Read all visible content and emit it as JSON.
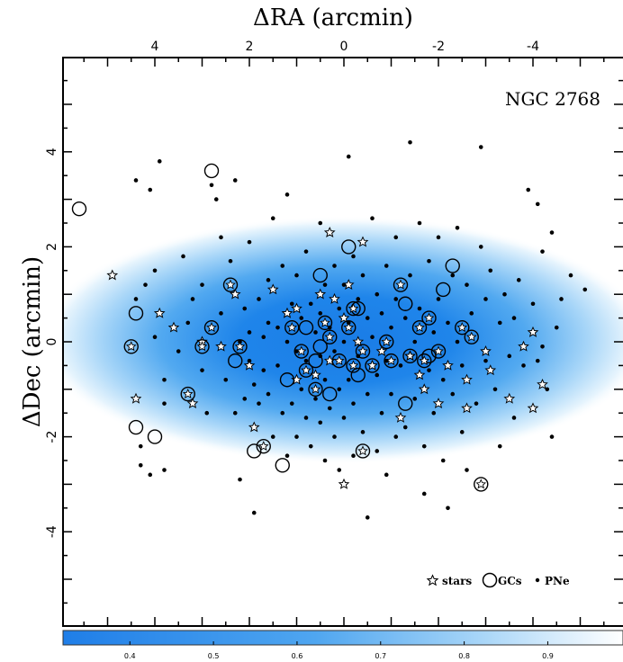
{
  "chart_data": {
    "type": "scatter",
    "xlabel": "ΔRA (arcmin)",
    "ylabel": "ΔDec (arcmin)",
    "xlim": [
      5.8,
      -5.8
    ],
    "ylim": [
      -6,
      6
    ],
    "x_ticks": [
      "4",
      "2",
      "0",
      "-2",
      "-4"
    ],
    "y_ticks": [
      "-4",
      "-2",
      "0",
      "2",
      "4"
    ],
    "annotation": "NGC 2768",
    "legend": {
      "stars_label": "stars",
      "gcs_label": "GCs",
      "pne_label": "PNe",
      "placement": "bottom-right"
    },
    "colorbar": {
      "ticks": [
        "0.4",
        "0.5",
        "0.6",
        "0.7",
        "0.8",
        "0.9"
      ],
      "range": [
        0.32,
        0.99
      ],
      "color_low": "#1f7ee8",
      "color_high": "#ffffff"
    },
    "series": [
      {
        "name": "stars",
        "marker": "star",
        "points": [
          [
            4.9,
            1.4
          ],
          [
            3.9,
            0.6
          ],
          [
            3.6,
            0.3
          ],
          [
            3.2,
            -1.3
          ],
          [
            3.0,
            0.0
          ],
          [
            2.3,
            1.0
          ],
          [
            2.6,
            -0.1
          ],
          [
            2.0,
            -0.5
          ],
          [
            1.9,
            -1.8
          ],
          [
            1.5,
            1.1
          ],
          [
            1.2,
            0.6
          ],
          [
            1.0,
            0.7
          ],
          [
            1.0,
            -0.8
          ],
          [
            0.6,
            -0.7
          ],
          [
            0.5,
            1.0
          ],
          [
            0.3,
            -0.4
          ],
          [
            0.3,
            2.3
          ],
          [
            0.2,
            0.9
          ],
          [
            0.0,
            -3.0
          ],
          [
            0.0,
            0.5
          ],
          [
            -0.1,
            1.2
          ],
          [
            -0.3,
            0.0
          ],
          [
            -0.4,
            2.1
          ],
          [
            -0.6,
            -0.5
          ],
          [
            -0.8,
            -0.2
          ],
          [
            -1.2,
            -1.6
          ],
          [
            -1.4,
            -0.3
          ],
          [
            -1.6,
            -0.7
          ],
          [
            -1.7,
            -1.0
          ],
          [
            -2.0,
            -1.3
          ],
          [
            -2.2,
            -0.5
          ],
          [
            -2.6,
            -0.8
          ],
          [
            -2.6,
            -1.4
          ],
          [
            -3.0,
            -0.2
          ],
          [
            -3.1,
            -0.6
          ],
          [
            -3.5,
            -1.2
          ],
          [
            -3.8,
            -0.1
          ],
          [
            -4.0,
            0.2
          ],
          [
            -4.0,
            -1.4
          ],
          [
            -4.2,
            -0.9
          ],
          [
            4.4,
            -1.2
          ]
        ]
      },
      {
        "name": "GCs",
        "marker": "circle",
        "points": [
          [
            5.6,
            2.8
          ],
          [
            4.4,
            0.6
          ],
          [
            4.4,
            -1.8
          ],
          [
            4.0,
            -2.0
          ],
          [
            2.8,
            3.6
          ],
          [
            1.9,
            -2.3
          ],
          [
            1.3,
            -2.6
          ],
          [
            0.5,
            1.4
          ],
          [
            -0.1,
            2.0
          ],
          [
            -1.3,
            -1.3
          ],
          [
            -2.3,
            1.6
          ],
          [
            -2.1,
            1.1
          ],
          [
            1.2,
            -0.8
          ],
          [
            0.3,
            -1.1
          ],
          [
            -0.3,
            0.7
          ],
          [
            0.8,
            0.3
          ],
          [
            -0.6,
            -0.5
          ],
          [
            -1.3,
            0.8
          ],
          [
            0.6,
            -0.4
          ],
          [
            -1.8,
            -0.3
          ],
          [
            -0.3,
            -0.7
          ],
          [
            2.3,
            -0.4
          ],
          [
            0.5,
            -0.1
          ]
        ]
      },
      {
        "name": "GCs with star",
        "marker": "circle-star",
        "points": [
          [
            4.5,
            -0.1
          ],
          [
            3.3,
            -1.1
          ],
          [
            3.0,
            -0.1
          ],
          [
            2.8,
            0.3
          ],
          [
            2.4,
            1.2
          ],
          [
            2.2,
            -0.1
          ],
          [
            1.7,
            -2.2
          ],
          [
            1.1,
            0.3
          ],
          [
            0.9,
            -0.2
          ],
          [
            0.6,
            -1.0
          ],
          [
            0.3,
            0.1
          ],
          [
            0.1,
            -0.4
          ],
          [
            -0.1,
            0.3
          ],
          [
            -0.2,
            -0.5
          ],
          [
            -0.4,
            -0.2
          ],
          [
            -0.4,
            -2.3
          ],
          [
            -0.9,
            0.0
          ],
          [
            -1.2,
            1.2
          ],
          [
            -1.4,
            -0.3
          ],
          [
            -1.6,
            0.3
          ],
          [
            -1.7,
            -0.4
          ],
          [
            -1.8,
            0.5
          ],
          [
            -2.0,
            -0.2
          ],
          [
            -2.5,
            0.3
          ],
          [
            -2.7,
            0.1
          ],
          [
            -2.9,
            -3.0
          ],
          [
            -0.2,
            0.7
          ],
          [
            0.8,
            -0.6
          ],
          [
            -1.0,
            -0.4
          ],
          [
            0.4,
            0.4
          ]
        ]
      },
      {
        "name": "PNe",
        "marker": "dot",
        "points": [
          [
            4.4,
            3.4
          ],
          [
            4.1,
            3.2
          ],
          [
            3.9,
            3.8
          ],
          [
            4.2,
            1.2
          ],
          [
            4.0,
            1.5
          ],
          [
            4.3,
            -2.6
          ],
          [
            4.1,
            -2.8
          ],
          [
            3.8,
            -2.7
          ],
          [
            4.3,
            -2.2
          ],
          [
            4.4,
            0.9
          ],
          [
            4.0,
            0.1
          ],
          [
            3.8,
            -0.8
          ],
          [
            3.8,
            -1.3
          ],
          [
            3.5,
            -0.2
          ],
          [
            3.4,
            1.8
          ],
          [
            3.3,
            0.4
          ],
          [
            3.2,
            0.9
          ],
          [
            3.0,
            1.2
          ],
          [
            3.0,
            -0.6
          ],
          [
            2.9,
            -1.5
          ],
          [
            2.8,
            3.3
          ],
          [
            2.7,
            3.0
          ],
          [
            2.6,
            2.2
          ],
          [
            2.6,
            0.6
          ],
          [
            2.5,
            -0.8
          ],
          [
            2.4,
            1.7
          ],
          [
            2.3,
            3.4
          ],
          [
            2.3,
            -1.5
          ],
          [
            2.2,
            0.0
          ],
          [
            2.2,
            -2.9
          ],
          [
            2.1,
            0.7
          ],
          [
            2.1,
            -1.2
          ],
          [
            2.0,
            2.1
          ],
          [
            2.0,
            0.2
          ],
          [
            2.0,
            -0.4
          ],
          [
            1.9,
            -3.6
          ],
          [
            1.9,
            -0.9
          ],
          [
            1.8,
            0.9
          ],
          [
            1.8,
            -1.3
          ],
          [
            1.7,
            0.1
          ],
          [
            1.7,
            -0.6
          ],
          [
            1.6,
            1.3
          ],
          [
            1.6,
            0.4
          ],
          [
            1.6,
            -1.1
          ],
          [
            1.5,
            -2.0
          ],
          [
            1.5,
            2.6
          ],
          [
            1.4,
            0.3
          ],
          [
            1.4,
            -0.5
          ],
          [
            1.3,
            1.6
          ],
          [
            1.3,
            -1.5
          ],
          [
            1.2,
            3.1
          ],
          [
            1.2,
            0.0
          ],
          [
            1.2,
            -2.4
          ],
          [
            1.1,
            0.8
          ],
          [
            1.1,
            -1.3
          ],
          [
            1.0,
            1.4
          ],
          [
            1.0,
            -0.2
          ],
          [
            1.0,
            -2.0
          ],
          [
            0.9,
            0.5
          ],
          [
            0.9,
            -1.0
          ],
          [
            0.8,
            1.9
          ],
          [
            0.8,
            -0.4
          ],
          [
            0.8,
            -1.6
          ],
          [
            0.7,
            0.8
          ],
          [
            0.7,
            -2.2
          ],
          [
            0.6,
            0.2
          ],
          [
            0.6,
            -1.2
          ],
          [
            0.5,
            2.5
          ],
          [
            0.5,
            0.6
          ],
          [
            0.5,
            -0.3
          ],
          [
            0.5,
            -1.7
          ],
          [
            0.4,
            1.2
          ],
          [
            0.4,
            -0.8
          ],
          [
            0.4,
            -2.5
          ],
          [
            0.3,
            0.3
          ],
          [
            0.3,
            -1.4
          ],
          [
            0.2,
            1.6
          ],
          [
            0.2,
            -0.2
          ],
          [
            0.2,
            -2.0
          ],
          [
            0.1,
            0.7
          ],
          [
            0.1,
            -1.0
          ],
          [
            0.1,
            -2.7
          ],
          [
            0.0,
            0.0
          ],
          [
            0.0,
            1.2
          ],
          [
            0.0,
            -1.6
          ],
          [
            -0.1,
            3.9
          ],
          [
            -0.1,
            0.4
          ],
          [
            -0.1,
            -0.8
          ],
          [
            -0.2,
            1.8
          ],
          [
            -0.2,
            -1.3
          ],
          [
            -0.2,
            -2.4
          ],
          [
            -0.3,
            0.9
          ],
          [
            -0.3,
            -0.3
          ],
          [
            -0.4,
            1.4
          ],
          [
            -0.4,
            -1.9
          ],
          [
            -0.5,
            0.5
          ],
          [
            -0.5,
            -3.7
          ],
          [
            -0.5,
            -1.1
          ],
          [
            -0.6,
            2.6
          ],
          [
            -0.6,
            0.1
          ],
          [
            -0.7,
            1.0
          ],
          [
            -0.7,
            -0.7
          ],
          [
            -0.7,
            -2.3
          ],
          [
            -0.8,
            0.6
          ],
          [
            -0.8,
            -1.5
          ],
          [
            -0.9,
            1.6
          ],
          [
            -0.9,
            -0.4
          ],
          [
            -0.9,
            -2.8
          ],
          [
            -1.0,
            0.3
          ],
          [
            -1.0,
            -1.1
          ],
          [
            -1.1,
            2.2
          ],
          [
            -1.1,
            0.9
          ],
          [
            -1.1,
            -2.0
          ],
          [
            -1.2,
            -0.5
          ],
          [
            -1.3,
            0.5
          ],
          [
            -1.3,
            -1.8
          ],
          [
            -1.4,
            4.2
          ],
          [
            -1.4,
            1.4
          ],
          [
            -1.5,
            0.0
          ],
          [
            -1.5,
            -1.2
          ],
          [
            -1.6,
            2.5
          ],
          [
            -1.6,
            0.7
          ],
          [
            -1.7,
            -2.2
          ],
          [
            -1.7,
            -3.2
          ],
          [
            -1.8,
            1.7
          ],
          [
            -1.8,
            -0.6
          ],
          [
            -1.9,
            0.2
          ],
          [
            -1.9,
            -1.5
          ],
          [
            -2.0,
            2.2
          ],
          [
            -2.0,
            0.9
          ],
          [
            -2.1,
            -0.8
          ],
          [
            -2.1,
            -2.5
          ],
          [
            -2.2,
            0.4
          ],
          [
            -2.2,
            -3.5
          ],
          [
            -2.3,
            1.4
          ],
          [
            -2.3,
            -1.1
          ],
          [
            -2.4,
            2.4
          ],
          [
            -2.4,
            0.0
          ],
          [
            -2.5,
            -0.5
          ],
          [
            -2.5,
            -1.9
          ],
          [
            -2.6,
            1.2
          ],
          [
            -2.6,
            -2.7
          ],
          [
            -2.7,
            0.6
          ],
          [
            -2.8,
            -1.3
          ],
          [
            -2.9,
            2.0
          ],
          [
            -2.9,
            4.1
          ],
          [
            -3.0,
            0.9
          ],
          [
            -3.0,
            -0.4
          ],
          [
            -3.1,
            1.5
          ],
          [
            -3.2,
            -1.0
          ],
          [
            -3.3,
            0.4
          ],
          [
            -3.3,
            -2.2
          ],
          [
            -3.4,
            1.0
          ],
          [
            -3.5,
            -0.3
          ],
          [
            -3.6,
            0.5
          ],
          [
            -3.6,
            -1.6
          ],
          [
            -3.7,
            1.3
          ],
          [
            -3.8,
            -0.5
          ],
          [
            -3.9,
            3.2
          ],
          [
            -4.0,
            0.8
          ],
          [
            -4.1,
            2.9
          ],
          [
            -4.1,
            -0.4
          ],
          [
            -4.2,
            1.9
          ],
          [
            -4.3,
            -1.0
          ],
          [
            -4.4,
            2.3
          ],
          [
            -4.4,
            -2.0
          ],
          [
            -4.5,
            0.3
          ],
          [
            -4.6,
            0.9
          ],
          [
            -4.8,
            1.4
          ],
          [
            -5.1,
            1.1
          ],
          [
            -4.2,
            -0.1
          ]
        ]
      }
    ]
  }
}
